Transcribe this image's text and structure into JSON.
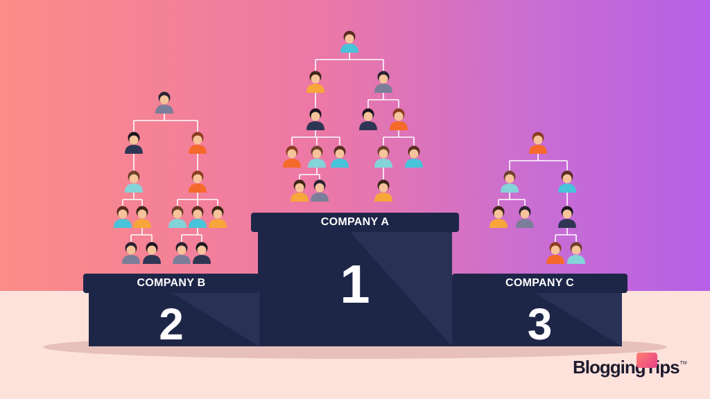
{
  "podiums": [
    {
      "label": "COMPANY A",
      "rank": "1"
    },
    {
      "label": "COMPANY B",
      "rank": "2"
    },
    {
      "label": "COMPANY C",
      "rank": "3"
    }
  ],
  "logo": {
    "text": "BloggingTips",
    "trademark": "TM"
  },
  "colors": {
    "podium": "#1e2648",
    "podium_shade": "#2a3157",
    "floor": "#fde2dc",
    "gradient_left": "#fc8c87",
    "gradient_right": "#b75fe6",
    "connector": "#ffffff"
  },
  "icons": [
    "person-avatar-icon",
    "org-chart-connector",
    "logo-mark-icon"
  ]
}
